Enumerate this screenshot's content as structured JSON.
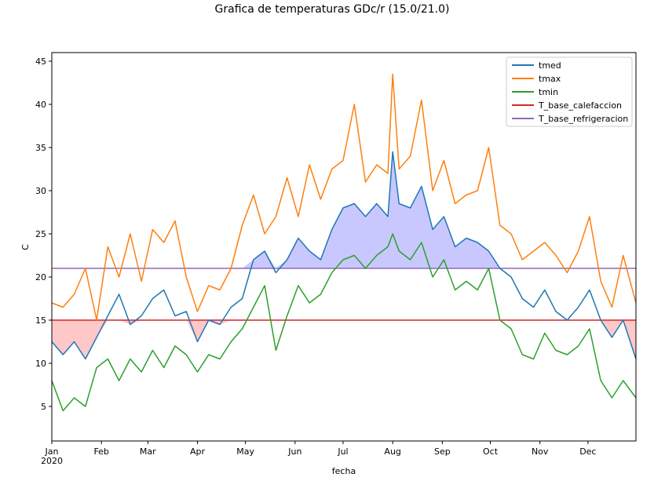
{
  "chart_data": {
    "type": "line",
    "title": "Grafica de temperaturas GDc/r (15.0/21.0)",
    "xlabel": "fecha",
    "ylabel": "C",
    "xlim": [
      "2020-01-01",
      "2020-12-31"
    ],
    "ylim": [
      1,
      46
    ],
    "yticks": [
      5,
      10,
      15,
      20,
      25,
      30,
      35,
      40,
      45
    ],
    "xticks": [
      {
        "date": "2020-01-01",
        "label": "Jan",
        "sublabel": "2020"
      },
      {
        "date": "2020-02-01",
        "label": "Feb"
      },
      {
        "date": "2020-03-01",
        "label": "Mar"
      },
      {
        "date": "2020-04-01",
        "label": "Apr"
      },
      {
        "date": "2020-05-01",
        "label": "May"
      },
      {
        "date": "2020-06-01",
        "label": "Jun"
      },
      {
        "date": "2020-07-01",
        "label": "Jul"
      },
      {
        "date": "2020-08-01",
        "label": "Aug"
      },
      {
        "date": "2020-09-01",
        "label": "Sep"
      },
      {
        "date": "2020-10-01",
        "label": "Oct"
      },
      {
        "date": "2020-11-01",
        "label": "Nov"
      },
      {
        "date": "2020-12-01",
        "label": "Dec"
      }
    ],
    "grid": false,
    "legend_position": "top-right",
    "series": [
      {
        "name": "tmed",
        "color": "#1f77b4",
        "x": [
          "2020-01-01",
          "2020-01-08",
          "2020-01-15",
          "2020-01-22",
          "2020-01-29",
          "2020-02-05",
          "2020-02-12",
          "2020-02-19",
          "2020-02-26",
          "2020-03-04",
          "2020-03-11",
          "2020-03-18",
          "2020-03-25",
          "2020-04-01",
          "2020-04-08",
          "2020-04-15",
          "2020-04-22",
          "2020-04-29",
          "2020-05-06",
          "2020-05-13",
          "2020-05-20",
          "2020-05-27",
          "2020-06-03",
          "2020-06-10",
          "2020-06-17",
          "2020-06-24",
          "2020-07-01",
          "2020-07-08",
          "2020-07-15",
          "2020-07-22",
          "2020-07-29",
          "2020-08-01",
          "2020-08-05",
          "2020-08-12",
          "2020-08-19",
          "2020-08-26",
          "2020-09-02",
          "2020-09-09",
          "2020-09-16",
          "2020-09-23",
          "2020-09-30",
          "2020-10-07",
          "2020-10-14",
          "2020-10-21",
          "2020-10-28",
          "2020-11-04",
          "2020-11-11",
          "2020-11-18",
          "2020-11-25",
          "2020-12-02",
          "2020-12-09",
          "2020-12-16",
          "2020-12-23",
          "2020-12-31"
        ],
        "values": [
          12.5,
          11.0,
          12.5,
          10.5,
          13.0,
          15.5,
          18.0,
          14.5,
          15.5,
          17.5,
          18.5,
          15.5,
          16.0,
          12.5,
          15.0,
          14.5,
          16.5,
          17.5,
          22.0,
          23.0,
          20.5,
          22.0,
          24.5,
          23.0,
          22.0,
          25.5,
          28.0,
          28.5,
          27.0,
          28.5,
          27.0,
          34.5,
          28.5,
          28.0,
          30.5,
          25.5,
          27.0,
          23.5,
          24.5,
          24.0,
          23.0,
          21.0,
          20.0,
          17.5,
          16.5,
          18.5,
          16.0,
          15.0,
          16.5,
          18.5,
          15.0,
          13.0,
          15.0,
          10.5
        ]
      },
      {
        "name": "tmax",
        "color": "#ff7f0e",
        "x": [
          "2020-01-01",
          "2020-01-08",
          "2020-01-15",
          "2020-01-22",
          "2020-01-29",
          "2020-02-05",
          "2020-02-12",
          "2020-02-19",
          "2020-02-26",
          "2020-03-04",
          "2020-03-11",
          "2020-03-18",
          "2020-03-25",
          "2020-04-01",
          "2020-04-08",
          "2020-04-15",
          "2020-04-22",
          "2020-04-29",
          "2020-05-06",
          "2020-05-13",
          "2020-05-20",
          "2020-05-27",
          "2020-06-03",
          "2020-06-10",
          "2020-06-17",
          "2020-06-24",
          "2020-07-01",
          "2020-07-08",
          "2020-07-15",
          "2020-07-22",
          "2020-07-29",
          "2020-08-01",
          "2020-08-05",
          "2020-08-12",
          "2020-08-19",
          "2020-08-26",
          "2020-09-02",
          "2020-09-09",
          "2020-09-16",
          "2020-09-23",
          "2020-09-30",
          "2020-10-07",
          "2020-10-14",
          "2020-10-21",
          "2020-10-28",
          "2020-11-04",
          "2020-11-11",
          "2020-11-18",
          "2020-11-25",
          "2020-12-02",
          "2020-12-09",
          "2020-12-16",
          "2020-12-23",
          "2020-12-31"
        ],
        "values": [
          17.0,
          16.5,
          18.0,
          21.0,
          15.0,
          23.5,
          20.0,
          25.0,
          19.5,
          25.5,
          24.0,
          26.5,
          20.0,
          16.0,
          19.0,
          18.5,
          21.0,
          26.0,
          29.5,
          25.0,
          27.0,
          31.5,
          27.0,
          33.0,
          29.0,
          32.5,
          33.5,
          40.0,
          31.0,
          33.0,
          32.0,
          43.5,
          32.5,
          34.0,
          40.5,
          30.0,
          33.5,
          28.5,
          29.5,
          30.0,
          35.0,
          26.0,
          25.0,
          22.0,
          23.0,
          24.0,
          22.5,
          20.5,
          23.0,
          27.0,
          19.5,
          16.5,
          22.5,
          17.0
        ]
      },
      {
        "name": "tmin",
        "color": "#2ca02c",
        "x": [
          "2020-01-01",
          "2020-01-08",
          "2020-01-15",
          "2020-01-22",
          "2020-01-29",
          "2020-02-05",
          "2020-02-12",
          "2020-02-19",
          "2020-02-26",
          "2020-03-04",
          "2020-03-11",
          "2020-03-18",
          "2020-03-25",
          "2020-04-01",
          "2020-04-08",
          "2020-04-15",
          "2020-04-22",
          "2020-04-29",
          "2020-05-06",
          "2020-05-13",
          "2020-05-20",
          "2020-05-27",
          "2020-06-03",
          "2020-06-10",
          "2020-06-17",
          "2020-06-24",
          "2020-07-01",
          "2020-07-08",
          "2020-07-15",
          "2020-07-22",
          "2020-07-29",
          "2020-08-01",
          "2020-08-05",
          "2020-08-12",
          "2020-08-19",
          "2020-08-26",
          "2020-09-02",
          "2020-09-09",
          "2020-09-16",
          "2020-09-23",
          "2020-09-30",
          "2020-10-07",
          "2020-10-14",
          "2020-10-21",
          "2020-10-28",
          "2020-11-04",
          "2020-11-11",
          "2020-11-18",
          "2020-11-25",
          "2020-12-02",
          "2020-12-09",
          "2020-12-16",
          "2020-12-23",
          "2020-12-31"
        ],
        "values": [
          8.0,
          4.5,
          6.0,
          5.0,
          9.5,
          10.5,
          8.0,
          10.5,
          9.0,
          11.5,
          9.5,
          12.0,
          11.0,
          9.0,
          11.0,
          10.5,
          12.5,
          14.0,
          16.5,
          19.0,
          11.5,
          15.5,
          19.0,
          17.0,
          18.0,
          20.5,
          22.0,
          22.5,
          21.0,
          22.5,
          23.5,
          25.0,
          23.0,
          22.0,
          24.0,
          20.0,
          22.0,
          18.5,
          19.5,
          18.5,
          21.0,
          15.0,
          14.0,
          11.0,
          10.5,
          13.5,
          11.5,
          11.0,
          12.0,
          14.0,
          8.0,
          6.0,
          8.0,
          6.0
        ]
      },
      {
        "name": "T_base_calefaccion",
        "color": "#d62728",
        "x": [
          "2020-01-01",
          "2020-12-31"
        ],
        "values": [
          15.0,
          15.0
        ]
      },
      {
        "name": "T_base_refrigeracion",
        "color": "#9467bd",
        "x": [
          "2020-01-01",
          "2020-12-31"
        ],
        "values": [
          21.0,
          21.0
        ]
      }
    ],
    "fills": [
      {
        "type": "below_base",
        "base": 15.0,
        "color": "#ff9b9b"
      },
      {
        "type": "above_base",
        "base": 21.0,
        "color": "#9b9bff"
      }
    ]
  }
}
